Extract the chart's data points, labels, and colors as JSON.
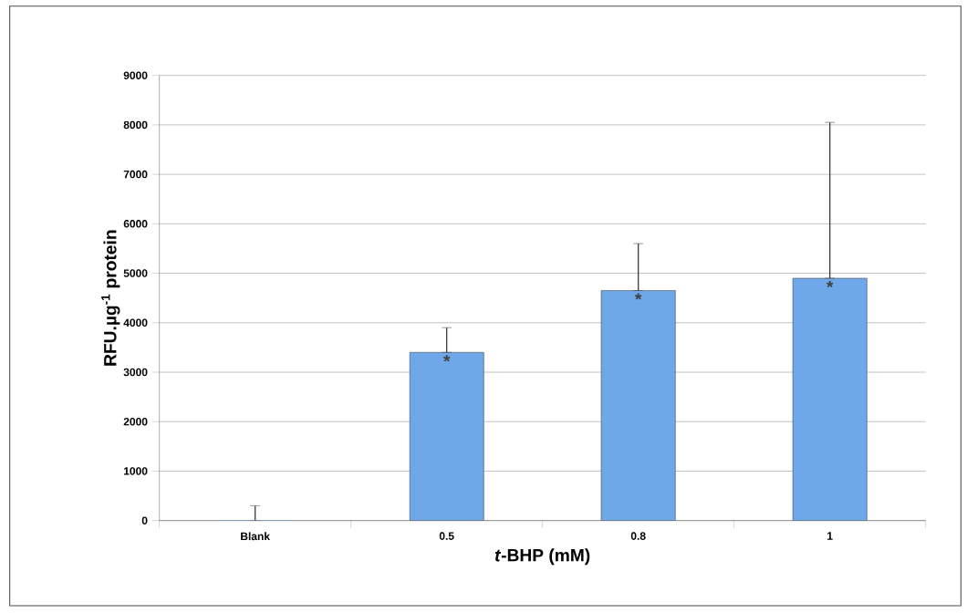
{
  "chart_data": {
    "type": "bar",
    "xlabel": "*t*-BHP (mM)",
    "ylabel": "RFU.µg$^{-1}$ protein",
    "categories": [
      "Blank",
      "0.5",
      "0.8",
      "1"
    ],
    "values": [
      0,
      3400,
      4650,
      4900
    ],
    "errors": [
      [
        0,
        300
      ],
      [
        3400,
        3900
      ],
      [
        4650,
        5600
      ],
      [
        4900,
        8050
      ]
    ],
    "color": "#6fa8e8",
    "ylim": [
      0,
      9000
    ],
    "yticks": [
      0,
      1000,
      2000,
      3000,
      4000,
      5000,
      6000,
      7000,
      8000,
      9000
    ],
    "grid": "y",
    "annotations": [
      "*",
      "*",
      "*"
    ]
  }
}
